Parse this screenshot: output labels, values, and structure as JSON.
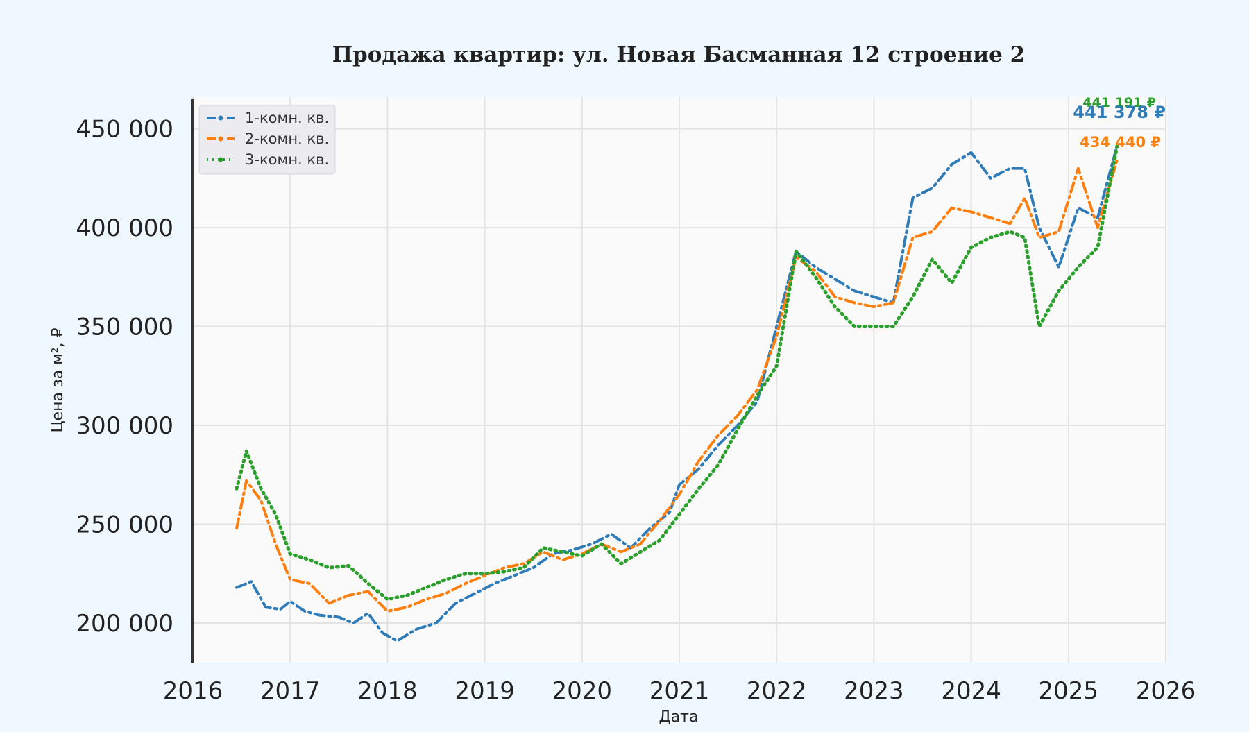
{
  "chart_data": {
    "type": "line",
    "title": "Продажа квартир: ул. Новая Басманная 12 строение 2",
    "xlabel": "Дата",
    "ylabel": "Цена за м², ₽",
    "xlim": [
      2016.0,
      2026.0
    ],
    "ylim": [
      180000,
      466000
    ],
    "x_ticks": [
      2016,
      2017,
      2018,
      2019,
      2020,
      2021,
      2022,
      2023,
      2024,
      2025,
      2026
    ],
    "x_tick_labels": [
      "2016",
      "2017",
      "2018",
      "2019",
      "2020",
      "2021",
      "2022",
      "2023",
      "2024",
      "2025",
      "2026"
    ],
    "y_ticks": [
      200000,
      250000,
      300000,
      350000,
      400000,
      450000
    ],
    "y_tick_labels": [
      "200 000",
      "250 000",
      "300 000",
      "350 000",
      "400 000",
      "450 000"
    ],
    "grid": true,
    "legend_position": "top-left",
    "series": [
      {
        "name": "1-комн. кв.",
        "color": "#2f7cb8",
        "line_style": "dash-dot",
        "x": [
          2016.45,
          2016.6,
          2016.75,
          2016.9,
          2017.0,
          2017.15,
          2017.3,
          2017.5,
          2017.65,
          2017.8,
          2017.95,
          2018.1,
          2018.3,
          2018.5,
          2018.7,
          2018.9,
          2019.1,
          2019.3,
          2019.5,
          2019.7,
          2019.9,
          2020.1,
          2020.3,
          2020.5,
          2020.7,
          2020.9,
          2021.0,
          2021.2,
          2021.4,
          2021.6,
          2021.8,
          2022.0,
          2022.2,
          2022.4,
          2022.6,
          2022.8,
          2023.0,
          2023.2,
          2023.4,
          2023.6,
          2023.8,
          2024.0,
          2024.2,
          2024.4,
          2024.55,
          2024.7,
          2024.9,
          2025.1,
          2025.3,
          2025.5
        ],
        "y": [
          218000,
          221000,
          208000,
          207000,
          211000,
          206000,
          204000,
          203000,
          200000,
          205000,
          195000,
          191000,
          197000,
          200000,
          210000,
          215000,
          220000,
          224000,
          228000,
          235000,
          237000,
          240000,
          245000,
          238000,
          248000,
          256000,
          270000,
          278000,
          290000,
          300000,
          312000,
          350000,
          388000,
          380000,
          374000,
          368000,
          365000,
          362000,
          415000,
          420000,
          432000,
          438000,
          425000,
          430000,
          430000,
          400000,
          380000,
          410000,
          405000,
          441378
        ]
      },
      {
        "name": "2-комн. кв.",
        "color": "#ff7f0e",
        "line_style": "dash-dot",
        "x": [
          2016.45,
          2016.55,
          2016.7,
          2016.85,
          2017.0,
          2017.2,
          2017.4,
          2017.6,
          2017.8,
          2018.0,
          2018.2,
          2018.4,
          2018.6,
          2018.8,
          2019.0,
          2019.2,
          2019.4,
          2019.6,
          2019.8,
          2020.0,
          2020.2,
          2020.4,
          2020.6,
          2020.8,
          2021.0,
          2021.2,
          2021.4,
          2021.6,
          2021.8,
          2022.0,
          2022.2,
          2022.4,
          2022.6,
          2022.8,
          2023.0,
          2023.2,
          2023.4,
          2023.6,
          2023.8,
          2024.0,
          2024.2,
          2024.4,
          2024.55,
          2024.7,
          2024.9,
          2025.1,
          2025.3,
          2025.5
        ],
        "y": [
          248000,
          272000,
          262000,
          240000,
          222000,
          220000,
          210000,
          214000,
          216000,
          206000,
          208000,
          212000,
          215000,
          220000,
          224000,
          228000,
          230000,
          236000,
          232000,
          235000,
          240000,
          236000,
          240000,
          252000,
          265000,
          282000,
          295000,
          305000,
          318000,
          345000,
          385000,
          378000,
          365000,
          362000,
          360000,
          362000,
          395000,
          398000,
          410000,
          408000,
          405000,
          402000,
          415000,
          395000,
          398000,
          430000,
          400000,
          434440
        ]
      },
      {
        "name": "3-комн. кв.",
        "color": "#2ca02c",
        "line_style": "dotted",
        "x": [
          2016.45,
          2016.55,
          2016.7,
          2016.85,
          2017.0,
          2017.2,
          2017.4,
          2017.6,
          2017.8,
          2018.0,
          2018.2,
          2018.4,
          2018.6,
          2018.8,
          2019.0,
          2019.2,
          2019.4,
          2019.6,
          2019.8,
          2020.0,
          2020.2,
          2020.4,
          2020.6,
          2020.8,
          2021.0,
          2021.2,
          2021.4,
          2021.6,
          2021.8,
          2022.0,
          2022.2,
          2022.4,
          2022.6,
          2022.8,
          2023.0,
          2023.2,
          2023.4,
          2023.6,
          2023.8,
          2024.0,
          2024.2,
          2024.4,
          2024.55,
          2024.7,
          2024.9,
          2025.1,
          2025.3,
          2025.5
        ],
        "y": [
          268000,
          287000,
          268000,
          255000,
          235000,
          232000,
          228000,
          229000,
          220000,
          212000,
          214000,
          218000,
          222000,
          225000,
          225000,
          226000,
          228000,
          238000,
          236000,
          234000,
          240000,
          230000,
          236000,
          242000,
          255000,
          268000,
          280000,
          298000,
          315000,
          330000,
          388000,
          375000,
          360000,
          350000,
          350000,
          350000,
          365000,
          384000,
          372000,
          390000,
          395000,
          398000,
          395000,
          350000,
          368000,
          380000,
          390000,
          441191
        ]
      }
    ],
    "end_labels": [
      "441 191 ₽",
      "441 378 ₽",
      "434 440 ₽"
    ]
  }
}
